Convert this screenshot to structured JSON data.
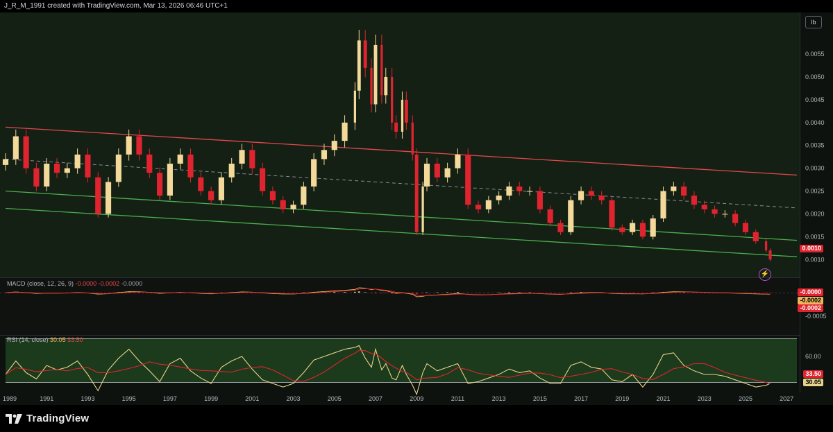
{
  "header": {
    "author_line": "J_R_M_1991 created with TradingView.com, Mar 13, 2026 06:46 UTC+1"
  },
  "unit_badge": "lb",
  "price_axis": {
    "ticks": [
      "0.0055",
      "0.0050",
      "0.0045",
      "0.0040",
      "0.0035",
      "0.0030",
      "0.0025",
      "0.0020",
      "0.0015",
      "0.0010"
    ],
    "last_price": "0.0010",
    "last_price_color": "#e0242f"
  },
  "macd": {
    "label": "MACD (close, 12, 26, 9)",
    "v1": "-0.0000",
    "v2": "-0.0002",
    "v3": "-0.0000",
    "axis_ticks": [
      "-0.0005"
    ],
    "pill_values": [
      "-0.0000",
      "-0.0002",
      "-0.0002"
    ]
  },
  "rsi": {
    "label": "RSI (14, close)",
    "v1": "30.05",
    "v2": "33.50",
    "axis_ticks": [
      "60.00"
    ],
    "pill_rsi": "30.05",
    "pill_ma": "33.50"
  },
  "time_axis": {
    "labels": [
      "1989",
      "1991",
      "1993",
      "1995",
      "1997",
      "1999",
      "2001",
      "2003",
      "2005",
      "2007",
      "2009",
      "2011",
      "2013",
      "2015",
      "2017",
      "2019",
      "2021",
      "2023",
      "2025",
      "2027"
    ]
  },
  "footer": {
    "brand": "TradingView"
  },
  "colors": {
    "bull": "#f3d99a",
    "bear": "#e0242f",
    "channel_top": "#e5484d",
    "channel_bottom": "#4caf50",
    "mid_dashed": "#8a8d93",
    "rsi_line": "#e8d38b",
    "rsi_ma": "#e0242f",
    "macd_line": "#f0b25a",
    "signal_line": "#e0242f"
  },
  "chart_data": {
    "type": "candlestick",
    "title": "",
    "y_unit": "lb",
    "xlim": [
      1989.0,
      2027.5
    ],
    "ylim": [
      0.0007,
      0.0062
    ],
    "x": [
      1989.0,
      1989.5,
      1990.0,
      1990.5,
      1991.0,
      1991.5,
      1992.0,
      1992.5,
      1993.0,
      1993.5,
      1994.0,
      1994.5,
      1995.0,
      1995.5,
      1996.0,
      1996.5,
      1997.0,
      1997.5,
      1998.0,
      1998.5,
      1999.0,
      1999.5,
      2000.0,
      2000.5,
      2001.0,
      2001.5,
      2002.0,
      2002.5,
      2003.0,
      2003.5,
      2004.0,
      2004.5,
      2005.0,
      2005.5,
      2006.0,
      2006.2,
      2006.5,
      2006.8,
      2007.0,
      2007.3,
      2007.5,
      2007.8,
      2008.0,
      2008.3,
      2008.5,
      2008.8,
      2009.0,
      2009.3,
      2009.5,
      2010.0,
      2010.5,
      2011.0,
      2011.5,
      2012.0,
      2012.5,
      2013.0,
      2013.5,
      2014.0,
      2014.5,
      2015.0,
      2015.5,
      2016.0,
      2016.5,
      2017.0,
      2017.5,
      2018.0,
      2018.5,
      2019.0,
      2019.5,
      2020.0,
      2020.5,
      2021.0,
      2021.5,
      2022.0,
      2022.5,
      2023.0,
      2023.5,
      2024.0,
      2024.5,
      2025.0,
      2025.5,
      2026.0,
      2026.2
    ],
    "series": [
      {
        "name": "Close",
        "values": [
          0.0032,
          0.0037,
          0.003,
          0.0026,
          0.0031,
          0.0029,
          0.003,
          0.0033,
          0.0028,
          0.002,
          0.0027,
          0.0033,
          0.0037,
          0.0033,
          0.0029,
          0.0024,
          0.0031,
          0.0033,
          0.0028,
          0.0025,
          0.0023,
          0.0028,
          0.0031,
          0.0034,
          0.003,
          0.0025,
          0.0023,
          0.0021,
          0.0022,
          0.0026,
          0.0032,
          0.0034,
          0.0036,
          0.004,
          0.0047,
          0.0058,
          0.0052,
          0.0044,
          0.0057,
          0.0046,
          0.005,
          0.004,
          0.0038,
          0.0045,
          0.004,
          0.0033,
          0.0016,
          0.0026,
          0.0031,
          0.0028,
          0.003,
          0.0033,
          0.0022,
          0.0021,
          0.0023,
          0.0024,
          0.0026,
          0.0025,
          0.0025,
          0.0021,
          0.0018,
          0.0016,
          0.0023,
          0.0025,
          0.0024,
          0.0023,
          0.0017,
          0.0016,
          0.0018,
          0.0015,
          0.0019,
          0.0025,
          0.0026,
          0.0024,
          0.0022,
          0.0021,
          0.002,
          0.002,
          0.0018,
          0.0016,
          0.0014,
          0.0012,
          0.001
        ]
      }
    ],
    "overlays": [
      {
        "name": "channel-top",
        "points": [
          [
            1989.0,
            0.0039
          ],
          [
            2027.5,
            0.00285
          ]
        ]
      },
      {
        "name": "channel-mid",
        "points": [
          [
            1989.0,
            0.0032
          ],
          [
            2027.5,
            0.00213
          ]
        ]
      },
      {
        "name": "channel-lower",
        "points": [
          [
            1989.0,
            0.0025
          ],
          [
            2027.5,
            0.00142
          ]
        ]
      },
      {
        "name": "channel-bottom",
        "points": [
          [
            1989.0,
            0.00212
          ],
          [
            2027.5,
            0.00106
          ]
        ]
      }
    ],
    "rsi_values": [
      40,
      55,
      42,
      35,
      50,
      45,
      48,
      55,
      40,
      22,
      45,
      58,
      68,
      55,
      44,
      32,
      52,
      58,
      44,
      36,
      30,
      48,
      55,
      60,
      46,
      34,
      30,
      26,
      30,
      42,
      56,
      60,
      64,
      68,
      70,
      72,
      58,
      48,
      68,
      45,
      52,
      36,
      34,
      50,
      40,
      28,
      18,
      42,
      52,
      44,
      48,
      52,
      30,
      32,
      36,
      40,
      46,
      42,
      44,
      36,
      30,
      30,
      50,
      54,
      48,
      46,
      34,
      32,
      40,
      26,
      40,
      62,
      64,
      50,
      44,
      40,
      40,
      38,
      34,
      30,
      26,
      28,
      30
    ],
    "rsi_ylim": [
      20,
      80
    ]
  }
}
